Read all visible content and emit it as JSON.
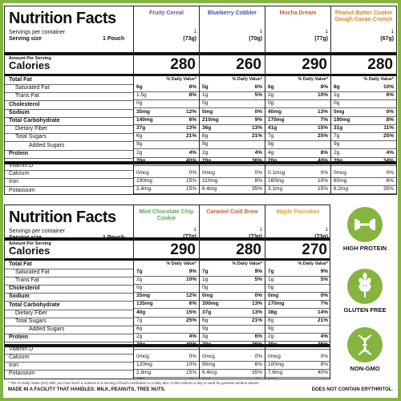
{
  "panels": [
    {
      "title": "Nutrition Facts",
      "servings_per_container": "Servings per container",
      "serving_size_label": "Serving size",
      "serving_size_value": "1 Pouch",
      "amount_per_serving": "Amount Per Serving",
      "calories_label": "Calories",
      "nutrient_labels": [
        "Total Fat",
        "Saturated Fat",
        "Trans Fat",
        "Cholesterol",
        "Sodium",
        "Total Carbohydrate",
        "Dietary Fiber",
        "Total Sugars",
        "Added Sugars",
        "Protein",
        "Vitamin D",
        "Calcium",
        "Iron",
        "Potassium"
      ],
      "flavors": [
        {
          "name": "Fruity Cereal",
          "color": "#7a4a9c",
          "servings": "1",
          "size": "(73g)",
          "calories": "280",
          "dv_header": "% Daily Value*",
          "rows": [
            [
              "6g",
              "8%"
            ],
            [
              "1.5g",
              "8%"
            ],
            [
              "0g",
              ""
            ],
            [
              "35mg",
              "12%"
            ],
            [
              "140mg",
              "6%"
            ],
            [
              "37g",
              "13%"
            ],
            [
              "6g",
              "21%"
            ],
            [
              "9g",
              ""
            ],
            [
              "2g",
              "4%"
            ],
            [
              "20g",
              "40%"
            ],
            [
              "0mcg",
              "0%"
            ],
            [
              "190mg",
              "15%"
            ],
            [
              "2.4mg",
              "15%"
            ],
            [
              "260mg",
              "6%"
            ]
          ]
        },
        {
          "name": "Blueberry Cobbler",
          "color": "#3b4ea8",
          "servings": "1",
          "size": "(70g)",
          "calories": "260",
          "dv_header": "% Daily Value*",
          "rows": [
            [
              "5g",
              "6%"
            ],
            [
              "1g",
              "5%"
            ],
            [
              "0g",
              ""
            ],
            [
              "0mg",
              "0%"
            ],
            [
              "210mg",
              "9%"
            ],
            [
              "36g",
              "13%"
            ],
            [
              "6g",
              "21%"
            ],
            [
              "9g",
              ""
            ],
            [
              "2g",
              "4%"
            ],
            [
              "20g",
              "36%"
            ],
            [
              "0mcg",
              "0%"
            ],
            [
              "110mg",
              "8%"
            ],
            [
              "6.4mg",
              "35%"
            ],
            [
              "240mg",
              "6%"
            ]
          ]
        },
        {
          "name": "Mocha Dream",
          "color": "#c0622b",
          "servings": "1",
          "size": "(77g)",
          "calories": "290",
          "dv_header": "% Daily Value*",
          "rows": [
            [
              "6g",
              "8%"
            ],
            [
              "2g",
              "10%"
            ],
            [
              "0g",
              ""
            ],
            [
              "40mg",
              "13%"
            ],
            [
              "170mg",
              "7%"
            ],
            [
              "41g",
              "15%"
            ],
            [
              "7g",
              "25%"
            ],
            [
              "9g",
              ""
            ],
            [
              "4g",
              "8%"
            ],
            [
              "20g",
              "40%"
            ],
            [
              "0.1mcg",
              "0%"
            ],
            [
              "160mg",
              "10%"
            ],
            [
              "3.1mg",
              "15%"
            ],
            [
              "370mg",
              "8%"
            ]
          ]
        },
        {
          "name": "Peanut Butter Cookie Dough Cacao Crunch",
          "color": "#d9822b",
          "servings": "1",
          "size": "(67g)",
          "calories": "280",
          "dv_header": "% Daily Value*",
          "rows": [
            [
              "8g",
              "10%"
            ],
            [
              "1g",
              "6%"
            ],
            [
              "0g",
              ""
            ],
            [
              "0mg",
              "0%"
            ],
            [
              "190mg",
              "8%"
            ],
            [
              "31g",
              "11%"
            ],
            [
              "7g",
              "25%"
            ],
            [
              "9g",
              ""
            ],
            [
              "2g",
              "4%"
            ],
            [
              "20g",
              "34%"
            ],
            [
              "0mcg",
              "0%"
            ],
            [
              "60mg",
              "6%"
            ],
            [
              "6.2mg",
              "35%"
            ],
            [
              "320mg",
              "6%"
            ]
          ]
        }
      ]
    },
    {
      "title": "Nutrition Facts",
      "servings_per_container": "Servings per container",
      "serving_size_label": "Serving size",
      "serving_size_value": "1 Pouch",
      "amount_per_serving": "Amount Per Serving",
      "calories_label": "Calories",
      "nutrient_labels": [
        "Total Fat",
        "Saturated Fat",
        "Trans Fat",
        "Cholesterol",
        "Sodium",
        "Total Carbohydrate",
        "Dietary Fiber",
        "Total Sugars",
        "Added Sugars",
        "Protein",
        "Vitamin D",
        "Calcium",
        "Iron",
        "Potassium"
      ],
      "flavors": [
        {
          "name": "Mint Chocolate Chip Cookie",
          "color": "#5aa65a",
          "servings": "1",
          "size": "(77g)",
          "calories": "290",
          "dv_header": "% Daily Value*",
          "rows": [
            [
              "7g",
              "9%"
            ],
            [
              "2g",
              "10%"
            ],
            [
              "0g",
              ""
            ],
            [
              "35mg",
              "12%"
            ],
            [
              "135mg",
              "6%"
            ],
            [
              "40g",
              "15%"
            ],
            [
              "7g",
              "25%"
            ],
            [
              "8g",
              ""
            ],
            [
              "2g",
              "4%"
            ],
            [
              "20g",
              "40%"
            ],
            [
              "0mcg",
              "0%"
            ],
            [
              "120mg",
              "10%"
            ],
            [
              "2.8mg",
              "15%"
            ],
            [
              "270mg",
              "6%"
            ]
          ]
        },
        {
          "name": "Caramel Cold Brew",
          "color": "#c0622b",
          "servings": "1",
          "size": "(73g)",
          "calories": "280",
          "dv_header": "% Daily Value*",
          "rows": [
            [
              "7g",
              "9%"
            ],
            [
              "1g",
              "5%"
            ],
            [
              "0g",
              ""
            ],
            [
              "0mg",
              "0%"
            ],
            [
              "300mg",
              "13%"
            ],
            [
              "37g",
              "13%"
            ],
            [
              "6g",
              "21%"
            ],
            [
              "9g",
              ""
            ],
            [
              "3g",
              "6%"
            ],
            [
              "20g",
              "36%"
            ],
            [
              "0mcg",
              "0%"
            ],
            [
              "90mg",
              "6%"
            ],
            [
              "6.4mg",
              "35%"
            ],
            [
              "280mg",
              "6%"
            ]
          ]
        },
        {
          "name": "Maple Pancakes",
          "color": "#e0a030",
          "servings": "1",
          "size": "(73g)",
          "calories": "270",
          "dv_header": "% Daily Value*",
          "rows": [
            [
              "7g",
              "9%"
            ],
            [
              "1g",
              "5%"
            ],
            [
              "0g",
              ""
            ],
            [
              "0mg",
              "0%"
            ],
            [
              "170mg",
              "7%"
            ],
            [
              "38g",
              "14%"
            ],
            [
              "6g",
              "21%"
            ],
            [
              "9g",
              ""
            ],
            [
              "2g",
              "4%"
            ],
            [
              "20g",
              "36%"
            ],
            [
              "0mcg",
              "0%"
            ],
            [
              "100mg",
              "8%"
            ],
            [
              "7.6mg",
              "40%"
            ],
            [
              "230mg",
              "4%"
            ]
          ]
        }
      ]
    }
  ],
  "badges": [
    {
      "label": "HIGH PROTEIN",
      "icon": "dumbbell-icon"
    },
    {
      "label": "GLUTEN FREE",
      "icon": "wheat-icon"
    },
    {
      "label": "NON-GMO",
      "icon": "dna-icon"
    }
  ],
  "footer": {
    "dv_note": "* The % Daily Value (DV) tells you how much a nutrient in a serving of food contributes to a daily diet. 2,000 calories a day is used for general nutrition advice.",
    "allergen": "MADE IN A FACILITY THAT HANDLES: MILK, PEANUTS, TREE NUTS.",
    "erythritol": "DOES NOT CONTAIN ERYTHRITOL."
  },
  "colors": {
    "brand_green": "#86b440"
  }
}
